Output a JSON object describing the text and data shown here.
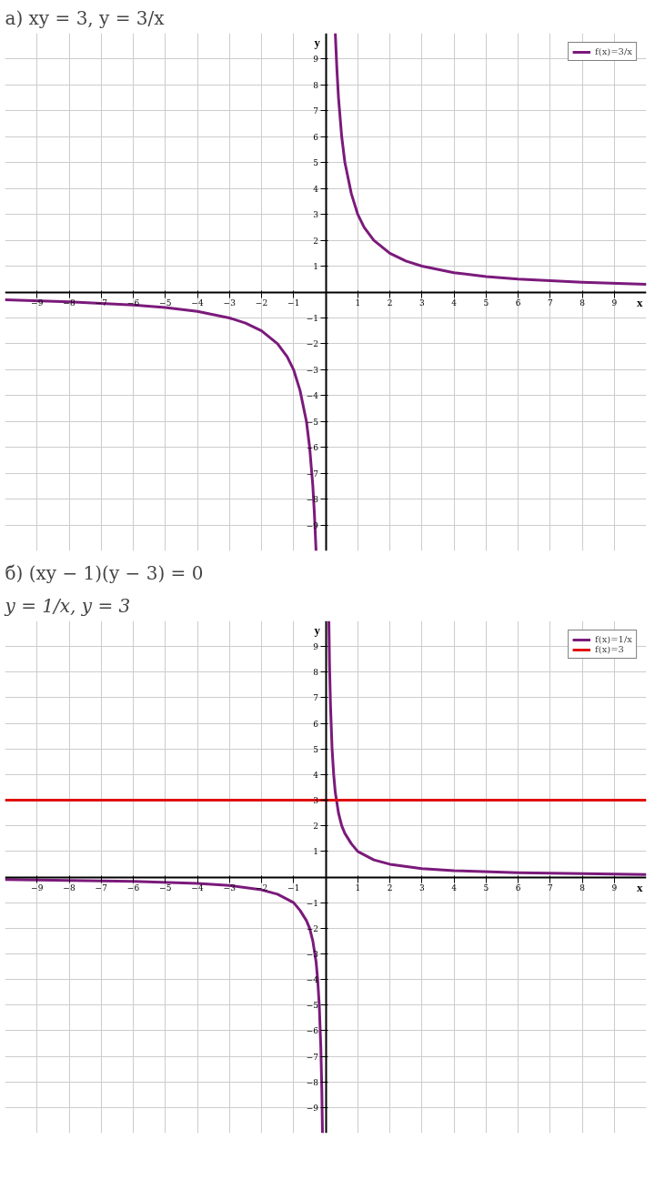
{
  "chart_data": [
    {
      "type": "line",
      "title": "а) xy = 3,   y = 3/x",
      "xlabel": "x",
      "ylabel": "y",
      "x": [
        -10,
        -8,
        -6,
        -5,
        -4,
        -3,
        -2.5,
        -2,
        -1.5,
        -1.2,
        -1,
        -0.8,
        -0.6,
        -0.5,
        -0.4,
        -0.35,
        -0.3,
        0,
        0.3,
        0.35,
        0.4,
        0.5,
        0.6,
        0.8,
        1,
        1.2,
        1.5,
        2,
        2.5,
        3,
        4,
        5,
        6,
        8,
        10
      ],
      "series": [
        {
          "name": "f(x)=3/x",
          "color": "#7b1a7b",
          "values": [
            -0.3,
            -0.38,
            -0.5,
            -0.6,
            -0.75,
            -1,
            -1.2,
            -1.5,
            -2,
            -2.5,
            -3,
            -3.8,
            -5,
            -6,
            -7.5,
            -8.6,
            -10,
            null,
            10,
            8.6,
            7.5,
            6,
            5,
            3.8,
            3,
            2.5,
            2,
            1.5,
            1.2,
            1,
            0.75,
            0.6,
            0.5,
            0.38,
            0.3
          ]
        }
      ],
      "xlim": [
        -10,
        10
      ],
      "ylim": [
        -10,
        10
      ],
      "xticks": [
        -9,
        -8,
        -7,
        -6,
        -5,
        -4,
        -3,
        -2,
        -1,
        1,
        2,
        3,
        4,
        5,
        6,
        7,
        8,
        9
      ],
      "yticks": [
        -9,
        -8,
        -7,
        -6,
        -5,
        -4,
        -3,
        -2,
        -1,
        1,
        2,
        3,
        4,
        5,
        6,
        7,
        8,
        9
      ],
      "grid": true,
      "legend": "top right",
      "marker": "none",
      "line_style": "solid"
    },
    {
      "type": "line",
      "title": "б) (xy − 1)(y − 3) = 0",
      "subtitle": "y = 1/x,   y = 3",
      "xlabel": "x",
      "ylabel": "y",
      "x": [
        -10,
        -8,
        -6,
        -4,
        -3,
        -2,
        -1.5,
        -1,
        -0.8,
        -0.6,
        -0.5,
        -0.4,
        -0.3,
        -0.25,
        -0.2,
        -0.15,
        -0.12,
        -0.1,
        0,
        0.1,
        0.12,
        0.15,
        0.2,
        0.25,
        0.3,
        0.4,
        0.5,
        0.6,
        0.8,
        1,
        1.5,
        2,
        3,
        4,
        6,
        8,
        10
      ],
      "series": [
        {
          "name": "f(x)=1/x",
          "color": "#7b1a7b",
          "values": [
            -0.1,
            -0.13,
            -0.17,
            -0.25,
            -0.33,
            -0.5,
            -0.67,
            -1,
            -1.3,
            -1.7,
            -2,
            -2.5,
            -3.3,
            -4,
            -5,
            -6.7,
            -8.3,
            -10,
            null,
            10,
            8.3,
            6.7,
            5,
            4,
            3.3,
            2.5,
            2,
            1.7,
            1.3,
            1,
            0.67,
            0.5,
            0.33,
            0.25,
            0.17,
            0.13,
            0.1
          ]
        },
        {
          "name": "f(x)=3",
          "color": "#e01010",
          "x": [
            -10,
            10
          ],
          "values": [
            3,
            3
          ]
        }
      ],
      "xlim": [
        -10,
        10
      ],
      "ylim": [
        -10,
        10
      ],
      "xticks": [
        -9,
        -8,
        -7,
        -6,
        -5,
        -4,
        -3,
        -2,
        -1,
        1,
        2,
        3,
        4,
        5,
        6,
        7,
        8,
        9
      ],
      "yticks": [
        -9,
        -8,
        -7,
        -6,
        -5,
        -4,
        -3,
        -2,
        -1,
        1,
        2,
        3,
        4,
        5,
        6,
        7,
        8,
        9
      ],
      "grid": true,
      "legend": "top right",
      "marker": "none",
      "line_style": "solid"
    }
  ]
}
